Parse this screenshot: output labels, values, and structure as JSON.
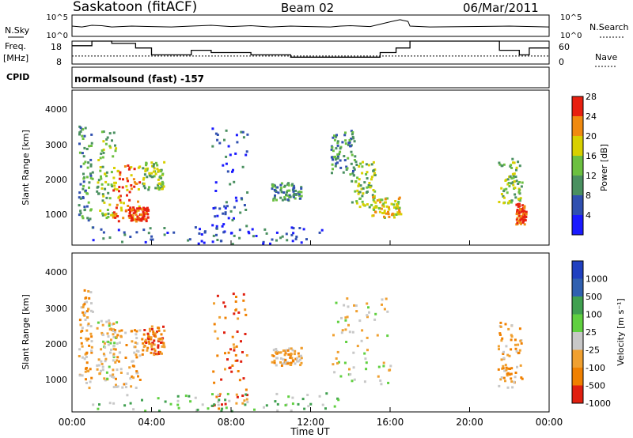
{
  "header": {
    "title": "Saskatoon (fitACF)",
    "beam": "Beam 02",
    "date": "06/Mar/2011"
  },
  "left_labels": {
    "nsky": "N.Sky",
    "freq": "Freq.",
    "freq_unit": "[MHz]",
    "cpid": "CPID"
  },
  "right_labels": {
    "nsearch": "N.Search",
    "nave": "Nave"
  },
  "cpid_text": "normalsound (fast) -157",
  "chart_data": [
    {
      "type": "line",
      "name": "noise",
      "yticks_left": [
        "10^5",
        "10^0"
      ],
      "yticks_right": [
        "10^5",
        "10^0"
      ],
      "series": [
        {
          "name": "N.Sky",
          "x": [
            0,
            0.5,
            1,
            1.5,
            2,
            3,
            4,
            5,
            6,
            7,
            8,
            9,
            10,
            11,
            12,
            13,
            13.5,
            14,
            15,
            16,
            16.5,
            16.9,
            17,
            18,
            20,
            22,
            24
          ],
          "values": [
            2.4,
            2.2,
            2.6,
            2.5,
            2.2,
            2.4,
            2.3,
            2.2,
            2.4,
            2.6,
            2.3,
            2.5,
            2.2,
            2.4,
            2.3,
            2.2,
            2.4,
            2.5,
            2.3,
            3.4,
            3.9,
            3.5,
            2.4,
            2.2,
            2.3,
            2.4,
            2.2
          ]
        }
      ],
      "ylim": [
        0,
        5
      ]
    },
    {
      "type": "line",
      "name": "frequency",
      "yticks_left": [
        "18",
        "8"
      ],
      "yticks_right": [
        "60",
        "0"
      ],
      "series": [
        {
          "name": "Freq.",
          "x": [
            0,
            0.6,
            1.0,
            2.0,
            3.2,
            4.0,
            5.5,
            6.0,
            7.0,
            8.5,
            9.0,
            10.0,
            11.0,
            12.0,
            13.5,
            14.5,
            15.0,
            15.5,
            16.0,
            16.3,
            17.0,
            19.0,
            21.0,
            21.5,
            22.0,
            22.5,
            23.0
          ],
          "values": [
            16,
            16,
            18,
            17,
            15,
            12,
            12,
            14,
            13,
            13,
            12,
            12,
            11,
            11,
            11,
            11,
            11,
            13,
            13,
            15,
            18,
            18,
            18,
            14,
            14,
            12,
            15
          ]
        },
        {
          "name": "Nave",
          "x": [
            0,
            24
          ],
          "values": [
            11.5,
            11.5
          ]
        }
      ],
      "ylim": [
        8,
        18
      ]
    },
    {
      "type": "heatmap",
      "name": "power",
      "ylabel": "Slant Range [km]",
      "yticks": [
        "1000",
        "2000",
        "3000",
        "4000"
      ],
      "ylim": [
        200,
        4600
      ],
      "xlim": [
        0,
        24
      ],
      "colorbar": {
        "label": "Power [dB]",
        "ticks": [
          "4",
          "8",
          "12",
          "16",
          "20",
          "24",
          "28"
        ],
        "colors": [
          "#1a1aff",
          "#3050b0",
          "#4a9060",
          "#6cc040",
          "#d8d000",
          "#f08a10",
          "#e82010"
        ]
      },
      "regions": [
        {
          "t0": 0.3,
          "t1": 1.0,
          "r0": 700,
          "r1": 3600,
          "level": 2
        },
        {
          "t0": 1.2,
          "t1": 2.2,
          "r0": 1000,
          "r1": 3500,
          "level": 3
        },
        {
          "t0": 2.0,
          "t1": 3.4,
          "r0": 900,
          "r1": 2500,
          "level": 5
        },
        {
          "t0": 2.8,
          "t1": 3.8,
          "r0": 900,
          "r1": 1300,
          "level": 6
        },
        {
          "t0": 3.5,
          "t1": 4.6,
          "r0": 1800,
          "r1": 2600,
          "level": 3
        },
        {
          "t0": 7.0,
          "t1": 8.8,
          "r0": 300,
          "r1": 3600,
          "level": 1
        },
        {
          "t0": 10.0,
          "t1": 11.5,
          "r0": 1500,
          "r1": 2000,
          "level": 2
        },
        {
          "t0": 13.0,
          "t1": 14.2,
          "r0": 2200,
          "r1": 3500,
          "level": 2
        },
        {
          "t0": 14.0,
          "t1": 15.2,
          "r0": 1300,
          "r1": 2600,
          "level": 3
        },
        {
          "t0": 15.0,
          "t1": 16.5,
          "r0": 1000,
          "r1": 1600,
          "level": 4
        },
        {
          "t0": 21.4,
          "t1": 22.6,
          "r0": 1400,
          "r1": 2700,
          "level": 3
        },
        {
          "t0": 22.3,
          "t1": 22.8,
          "r0": 800,
          "r1": 1400,
          "level": 6
        },
        {
          "t0": 1.0,
          "t1": 13.5,
          "r0": 250,
          "r1": 750,
          "level": 1
        }
      ]
    },
    {
      "type": "heatmap",
      "name": "velocity",
      "ylabel": "Slant Range [km]",
      "yticks": [
        "1000",
        "2000",
        "3000",
        "4000"
      ],
      "ylim": [
        200,
        4600
      ],
      "xlim": [
        0,
        24
      ],
      "xticks": [
        "00:00",
        "04:00",
        "08:00",
        "12:00",
        "16:00",
        "20:00",
        "00:00"
      ],
      "xlabel": "Time UT",
      "colorbar": {
        "label": "Velocity [m s⁻¹]",
        "ticks": [
          "1000",
          "500",
          "100",
          "25",
          "-25",
          "-100",
          "-500",
          "-1000"
        ],
        "colors": [
          "#2040c0",
          "#3060b0",
          "#40a050",
          "#60d040",
          "#c8c8c8",
          "#f0a030",
          "#f08000",
          "#e02010"
        ]
      },
      "regions": [
        {
          "t0": 0.3,
          "t1": 1.0,
          "r0": 700,
          "r1": 3600,
          "level": 5
        },
        {
          "t0": 1.2,
          "t1": 2.2,
          "r0": 1000,
          "r1": 2800,
          "level": 4
        },
        {
          "t0": 2.0,
          "t1": 3.5,
          "r0": 900,
          "r1": 2500,
          "level": 5
        },
        {
          "t0": 3.5,
          "t1": 4.6,
          "r0": 1800,
          "r1": 2600,
          "level": 6
        },
        {
          "t0": 7.0,
          "t1": 8.8,
          "r0": 300,
          "r1": 3600,
          "level": 6
        },
        {
          "t0": 10.0,
          "t1": 11.5,
          "r0": 1500,
          "r1": 2000,
          "level": 5
        },
        {
          "t0": 13.0,
          "t1": 16.0,
          "r0": 1000,
          "r1": 3400,
          "level": 4
        },
        {
          "t0": 21.4,
          "t1": 22.6,
          "r0": 900,
          "r1": 2700,
          "level": 5
        },
        {
          "t0": 1.0,
          "t1": 13.5,
          "r0": 250,
          "r1": 750,
          "level": 3
        }
      ]
    }
  ]
}
